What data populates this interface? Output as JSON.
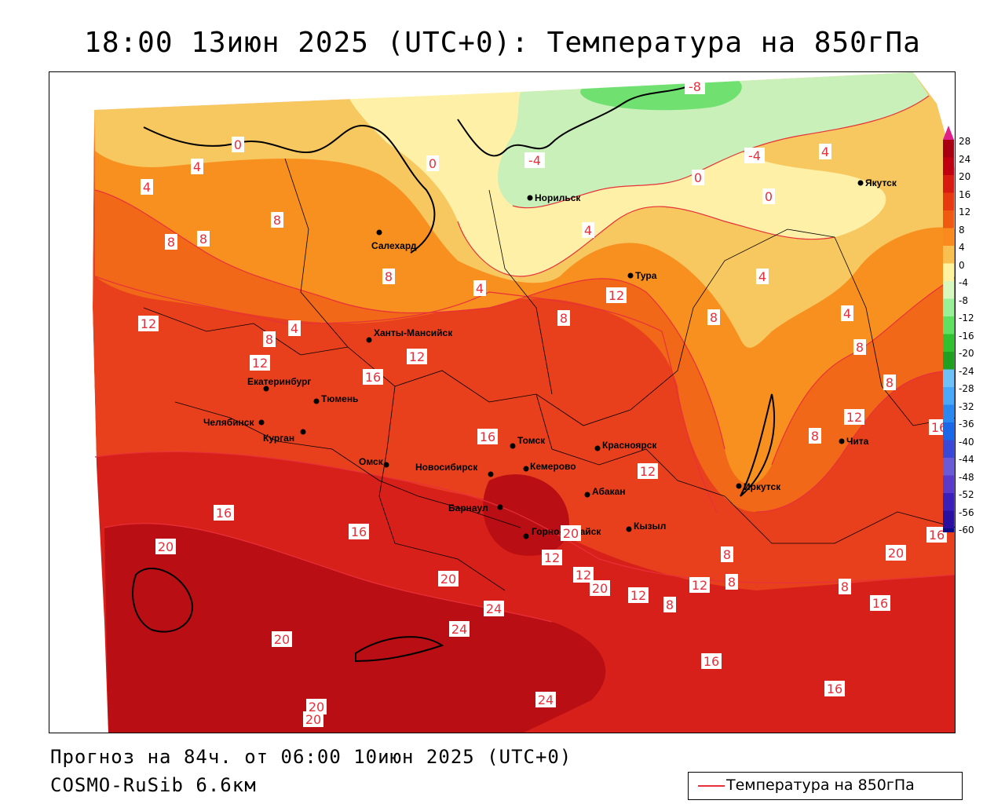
{
  "title": "18:00 13июн 2025 (UTC+0): Температура на 850гПа",
  "forecast_note": "Прогноз на 84ч. от 06:00 10июн 2025 (UTC+0)",
  "model_name": "COSMO-RuSib 6.6км",
  "legend": {
    "label": "Температура на 850гПа",
    "line_color": "#e8303a"
  },
  "colorbar": {
    "labels": [
      "28",
      "24",
      "20",
      "16",
      "12",
      "8",
      "4",
      "0",
      "-4",
      "-8",
      "-12",
      "-16",
      "-20",
      "-24",
      "-28",
      "-32",
      "-36",
      "-40",
      "-44",
      "-48",
      "-52",
      "-56",
      "-60"
    ],
    "colors": [
      "#a80010",
      "#c00010",
      "#d81a10",
      "#e83a10",
      "#f05a10",
      "#f88a20",
      "#f8c050",
      "#fff2a0",
      "#d8f8c0",
      "#98f098",
      "#60e060",
      "#30c030",
      "#20a020",
      "#70c0f8",
      "#4aa8f8",
      "#2a88f0",
      "#1a68e8",
      "#3a48d8",
      "#6a5ad8",
      "#5a3ac8",
      "#3a20b8",
      "#2a10a0",
      "#0a0a88"
    ],
    "top_color": "#e0208a"
  },
  "cities": [
    {
      "name": "Норильск"
    },
    {
      "name": "Якутск"
    },
    {
      "name": "Салехард"
    },
    {
      "name": "Тура"
    },
    {
      "name": "Ханты-Мансийск"
    },
    {
      "name": "Екатеринбург"
    },
    {
      "name": "Тюмень"
    },
    {
      "name": "Челябинск"
    },
    {
      "name": "Курган"
    },
    {
      "name": "Омск"
    },
    {
      "name": "Новосибирск"
    },
    {
      "name": "Томск"
    },
    {
      "name": "Кемерово"
    },
    {
      "name": "Красноярск"
    },
    {
      "name": "Абакан"
    },
    {
      "name": "Барнаул"
    },
    {
      "name": "Горно-Алтайск"
    },
    {
      "name": "Кызыл"
    },
    {
      "name": "Иркутск"
    },
    {
      "name": "Чита"
    }
  ],
  "isotherm_labels": [
    "-8",
    "-4",
    "-4",
    "0",
    "0",
    "0",
    "0",
    "4",
    "4",
    "4",
    "4",
    "4",
    "4",
    "4",
    "4",
    "8",
    "8",
    "8",
    "8",
    "8",
    "8",
    "8",
    "8",
    "8",
    "8",
    "8",
    "8",
    "8",
    "8",
    "12",
    "12",
    "12",
    "12",
    "12",
    "12",
    "12",
    "12",
    "12",
    "12",
    "16",
    "16",
    "16",
    "16",
    "16",
    "16",
    "16",
    "16",
    "16",
    "16",
    "20",
    "20",
    "20",
    "20",
    "20",
    "20",
    "20",
    "20",
    "24",
    "24",
    "24"
  ]
}
